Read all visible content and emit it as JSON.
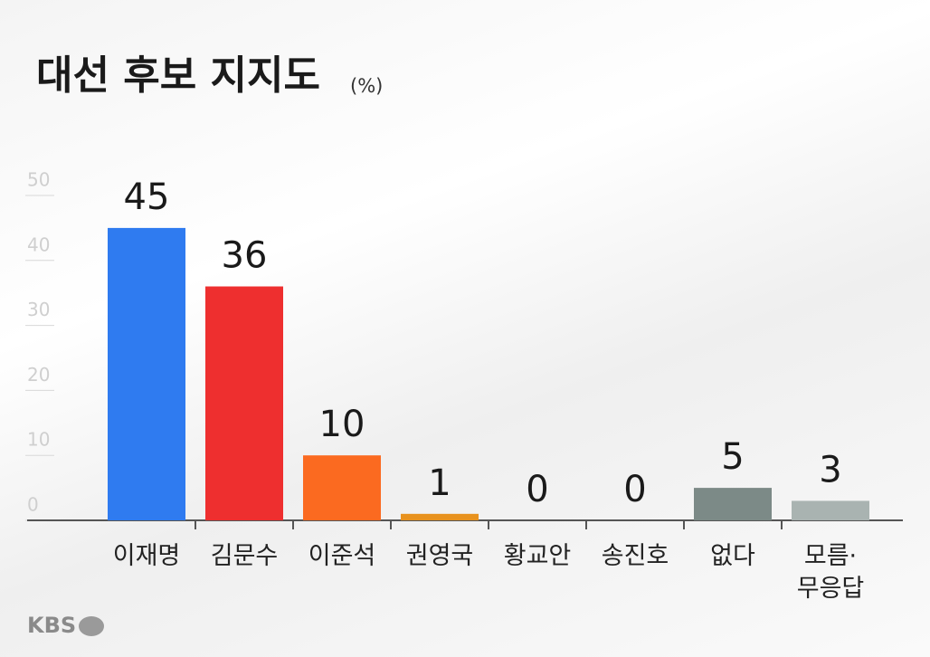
{
  "chart_data": {
    "type": "bar",
    "title": "대선 후보 지지도",
    "unit_label": "(%)",
    "categories": [
      "이재명",
      "김문수",
      "이준석",
      "권영국",
      "황교안",
      "송진호",
      "없다",
      "모름·\n무응답"
    ],
    "values": [
      45,
      36,
      10,
      1,
      0,
      0,
      5,
      3
    ],
    "colors": [
      "#2f7bf0",
      "#ee2f2f",
      "#fb6a20",
      "#e8921e",
      "#9aa5a3",
      "#9aa5a3",
      "#7c8a87",
      "#a9b3b1"
    ],
    "ylim": [
      0,
      50
    ],
    "yticks": [
      0,
      10,
      20,
      30,
      40,
      50
    ],
    "grid": false
  },
  "logo": "KBS"
}
